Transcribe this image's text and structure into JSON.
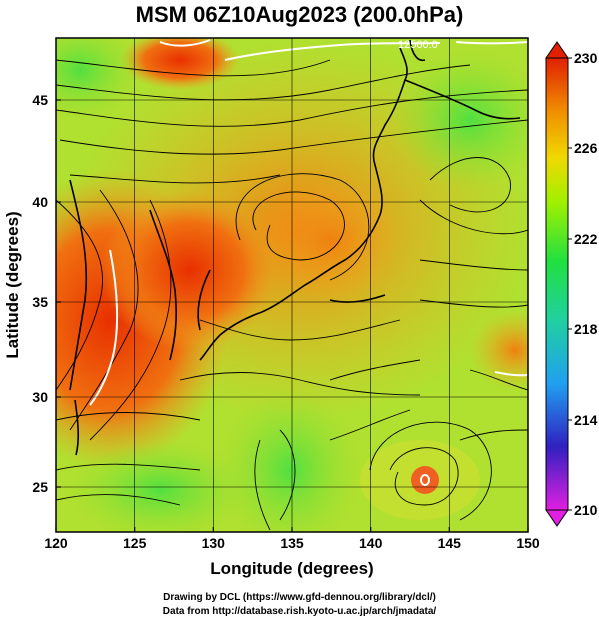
{
  "title": "MSM 06Z10Aug2023 (200.0hPa)",
  "x_axis": {
    "label": "Longitude (degrees)",
    "ticks": [
      "120",
      "125",
      "130",
      "135",
      "140",
      "145",
      "150"
    ],
    "range": [
      120,
      150
    ]
  },
  "y_axis": {
    "label": "Latitude  (degrees)",
    "ticks": [
      "25",
      "30",
      "35",
      "40",
      "45"
    ],
    "range": [
      22.4,
      47.6
    ]
  },
  "colorbar": {
    "ticks": [
      "230",
      "226",
      "222",
      "218",
      "214",
      "210"
    ],
    "range": [
      210,
      230
    ],
    "colors": [
      "#e020e0",
      "#2020d0",
      "#20c0f0",
      "#20e060",
      "#c0f000",
      "#f0d000",
      "#f08000",
      "#e02000"
    ]
  },
  "contour_label": "12500.0",
  "credits": {
    "line1": "Drawing by DCL (https://www.gfd-dennou.org/library/dcl/)",
    "line2": "Data from http://database.rish.kyoto-u.ac.jp/arch/jmadata/"
  }
}
